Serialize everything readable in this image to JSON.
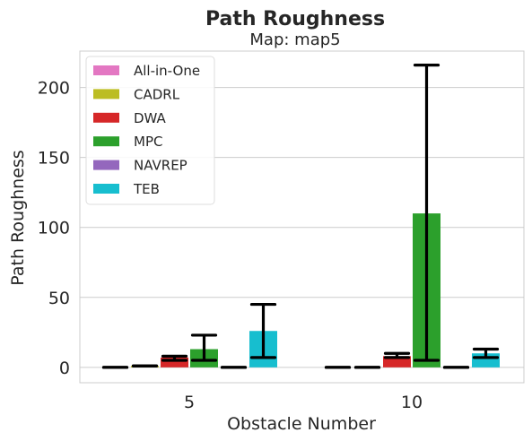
{
  "chart_data": {
    "type": "bar",
    "title": "Path Roughness",
    "subtitle": "Map: map5",
    "xlabel": "Obstacle Number",
    "ylabel": "Path Roughness",
    "categories": [
      "5",
      "10"
    ],
    "ylim": [
      -11,
      226
    ],
    "yticks": [
      0,
      50,
      100,
      150,
      200
    ],
    "grid": true,
    "legend_position": "top-left",
    "series": [
      {
        "name": "All-in-One",
        "color": "#e377c2",
        "values": [
          0,
          0
        ],
        "err_low": [
          0,
          0
        ],
        "err_high": [
          0,
          0
        ]
      },
      {
        "name": "CADRL",
        "color": "#bcbd22",
        "values": [
          1,
          0
        ],
        "err_low": [
          1,
          0
        ],
        "err_high": [
          1,
          0
        ]
      },
      {
        "name": "DWA",
        "color": "#d62728",
        "values": [
          7,
          8
        ],
        "err_low": [
          5,
          7
        ],
        "err_high": [
          8,
          10
        ]
      },
      {
        "name": "MPC",
        "color": "#2ca02c",
        "values": [
          13,
          110
        ],
        "err_low": [
          5,
          5
        ],
        "err_high": [
          23,
          216
        ]
      },
      {
        "name": "NAVREP",
        "color": "#9467bd",
        "values": [
          0,
          0
        ],
        "err_low": [
          0,
          0
        ],
        "err_high": [
          0,
          0
        ]
      },
      {
        "name": "TEB",
        "color": "#17becf",
        "values": [
          26,
          10
        ],
        "err_low": [
          7,
          7
        ],
        "err_high": [
          45,
          13
        ]
      }
    ]
  }
}
